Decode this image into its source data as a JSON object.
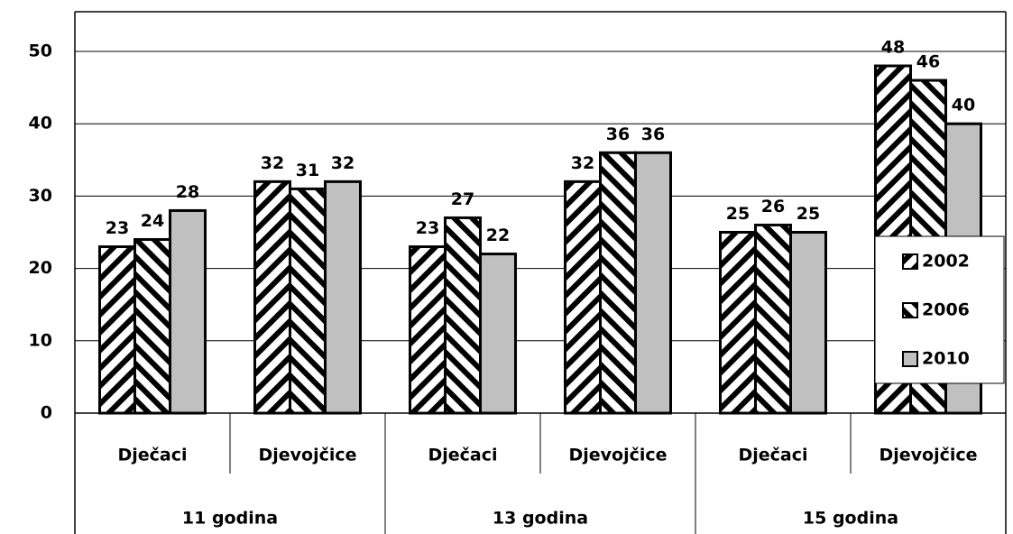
{
  "chart_data": {
    "type": "bar",
    "categories": [
      "Dječaci",
      "Djevojčice",
      "Dječaci",
      "Djevojčice",
      "Dječaci",
      "Djevojčice"
    ],
    "groups": [
      "11 godina",
      "13 godina",
      "15 godina"
    ],
    "series": [
      {
        "name": "2002",
        "color": "#000000",
        "pattern": "diagonal-up",
        "values": [
          23,
          32,
          23,
          32,
          25,
          48
        ]
      },
      {
        "name": "2006",
        "color": "#000000",
        "pattern": "diagonal-down",
        "values": [
          24,
          31,
          27,
          36,
          26,
          46
        ]
      },
      {
        "name": "2010",
        "color": "#c0c0c0",
        "pattern": "none",
        "values": [
          28,
          32,
          22,
          36,
          25,
          40
        ]
      }
    ],
    "ylim": [
      0,
      50
    ],
    "yticks": [
      0,
      10,
      20,
      30,
      40,
      50
    ],
    "grid": true,
    "legend": "right"
  }
}
